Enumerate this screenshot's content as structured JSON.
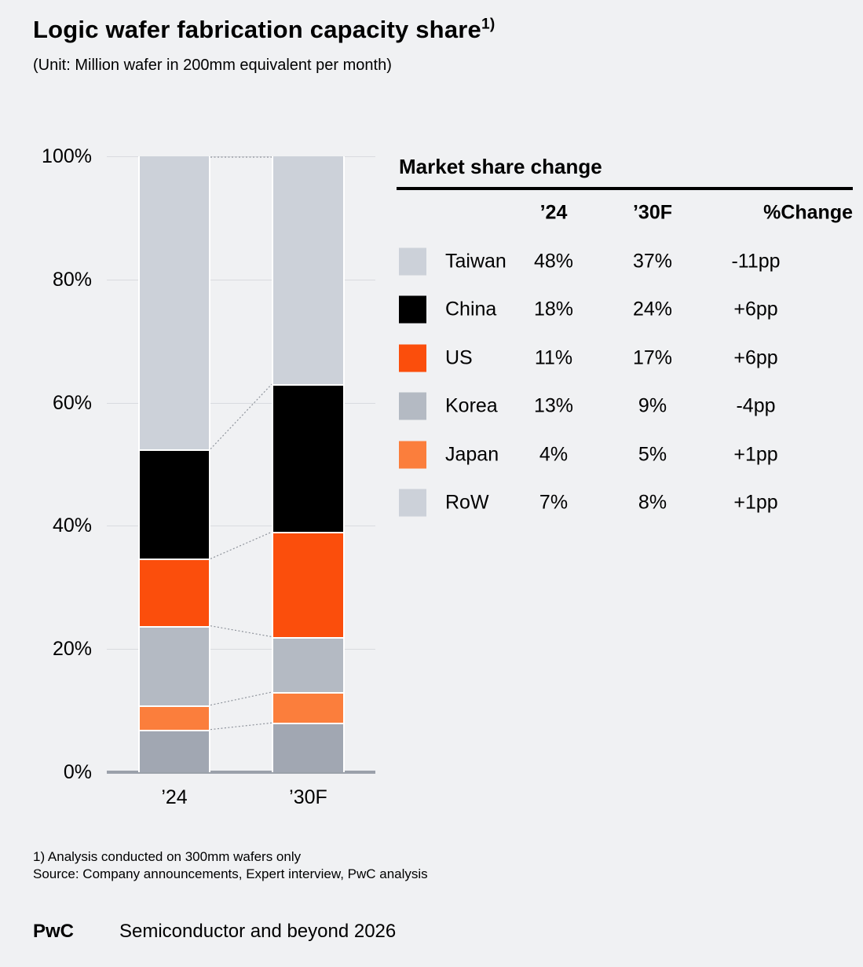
{
  "page": {
    "title": "Logic wafer fabrication capacity share",
    "title_sup": "1)",
    "subtitle": "(Unit: Million wafer in 200mm equivalent per month)",
    "footnote_line1": "1) Analysis conducted on 300mm wafers only",
    "footnote_line2": "Source: Company announcements, Expert interview, PwC analysis",
    "footer_brand": "PwC",
    "footer_text": "Semiconductor and beyond 2026"
  },
  "chart_data": {
    "type": "bar",
    "variant": "100-percent-stacked-column",
    "title": "Logic wafer fabrication capacity share",
    "unit_note": "Million wafer in 200mm equivalent per month",
    "categories": [
      "’24",
      "’30F"
    ],
    "series_top_to_bottom": [
      {
        "name": "Taiwan",
        "values": [
          48,
          37
        ],
        "color": "#ccd1d9"
      },
      {
        "name": "China",
        "values": [
          18,
          24
        ],
        "color": "#000000"
      },
      {
        "name": "US",
        "values": [
          11,
          17
        ],
        "color": "#fb4e0c"
      },
      {
        "name": "Korea",
        "values": [
          13,
          9
        ],
        "color": "#b4bac3"
      },
      {
        "name": "Japan",
        "values": [
          4,
          5
        ],
        "color": "#fb7e3c"
      },
      {
        "name": "RoW",
        "values": [
          7,
          8
        ],
        "color": "#a1a7b2",
        "legend_color": "#ccd1d9"
      }
    ],
    "ylim": [
      0,
      100
    ],
    "yticks": [
      "0%",
      "20%",
      "40%",
      "60%",
      "80%",
      "100%"
    ],
    "grid": true,
    "connector_lines_between_bars": true,
    "legend_position": "table-right"
  },
  "table": {
    "heading": "Market share change",
    "col_24": "’24",
    "col_30": "’30F",
    "col_change": "%Change",
    "rows": [
      {
        "label": "Taiwan",
        "v24": "48%",
        "v30": "37%",
        "change": "-11pp",
        "swatch": "#ccd1d9"
      },
      {
        "label": "China",
        "v24": "18%",
        "v30": "24%",
        "change": "+6pp",
        "swatch": "#000000"
      },
      {
        "label": "US",
        "v24": "11%",
        "v30": "17%",
        "change": "+6pp",
        "swatch": "#fb4e0c"
      },
      {
        "label": "Korea",
        "v24": "13%",
        "v30": "9%",
        "change": "-4pp",
        "swatch": "#b4bac3"
      },
      {
        "label": "Japan",
        "v24": "4%",
        "v30": "5%",
        "change": "+1pp",
        "swatch": "#fb7e3c"
      },
      {
        "label": "RoW",
        "v24": "7%",
        "v30": "8%",
        "change": "+1pp",
        "swatch": "#ccd1d9"
      }
    ]
  },
  "colors": {
    "background": "#f0f1f3",
    "gridline": "#d9dbdf",
    "axis": "#9ba1aa",
    "connector": "#8f949c"
  }
}
